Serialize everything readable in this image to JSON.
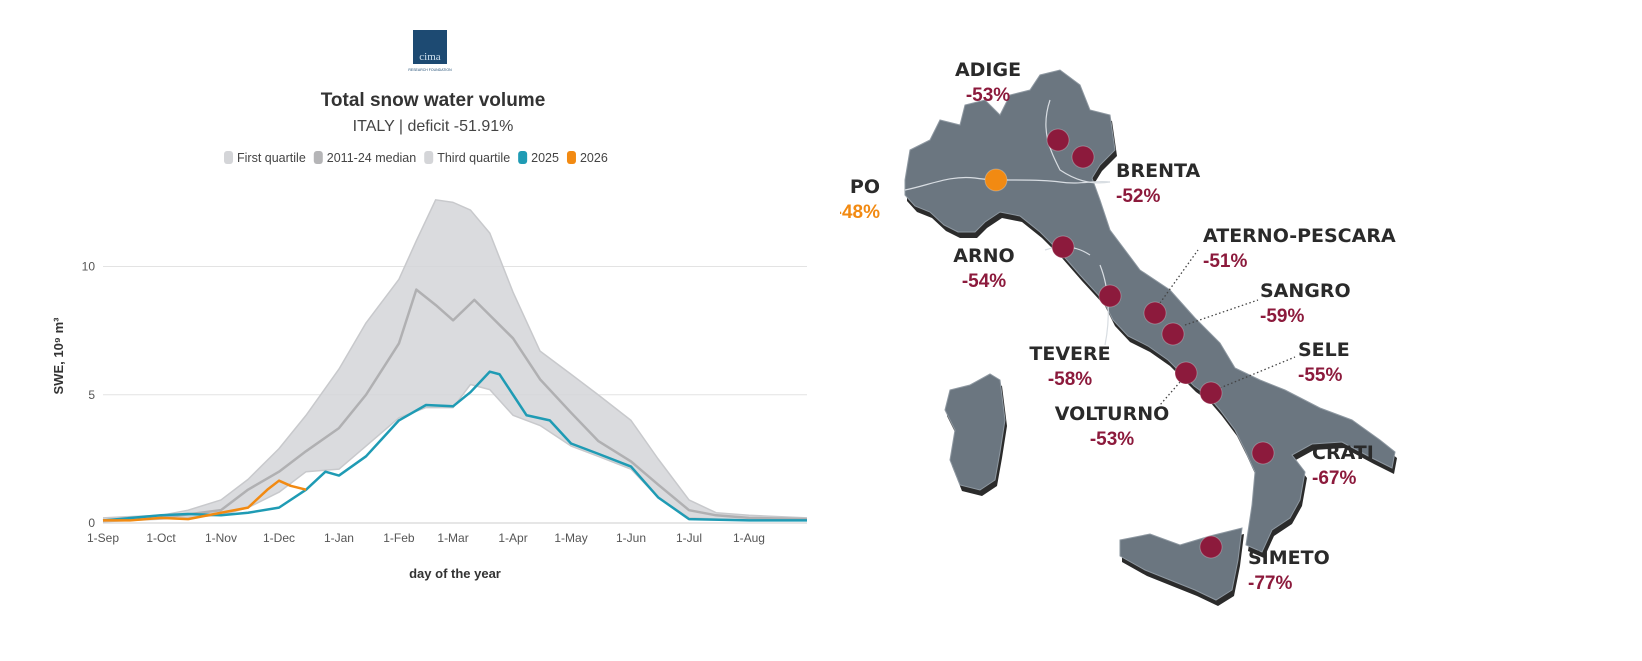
{
  "logo": {
    "text": "cima",
    "subtext": "RESEARCH FOUNDATION",
    "color": "#1d4a72"
  },
  "chart_data": {
    "type": "line",
    "title": "Total snow water volume",
    "subtitle": "ITALY | deficit -51.91%",
    "xlabel": "day of the year",
    "ylabel": "SWE, 10⁹ m³",
    "ylim": [
      0,
      13
    ],
    "yticks": [
      "0",
      "5",
      "10"
    ],
    "ytick_values": [
      0,
      5,
      10
    ],
    "xticks": [
      "1-Sep",
      "1-Oct",
      "1-Nov",
      "1-Dec",
      "1-Jan",
      "1-Feb",
      "1-Mar",
      "1-Apr",
      "1-May",
      "1-Jun",
      "1-Jul",
      "1-Aug"
    ],
    "xtick_dates": [
      "09-01",
      "10-01",
      "11-01",
      "12-01",
      "01-01",
      "02-01",
      "03-01",
      "04-01",
      "05-01",
      "06-01",
      "07-01",
      "08-01"
    ],
    "xlim": [
      "09-01",
      "08-31"
    ],
    "grid": "horizontal",
    "legend_position": "top-center",
    "legend": [
      {
        "label": "First quartile",
        "color": "#d4d5d8"
      },
      {
        "label": "2011-24 median",
        "color": "#b5b5b7"
      },
      {
        "label": "Third quartile",
        "color": "#d4d5d8"
      },
      {
        "label": "2025",
        "color": "#1f9bb4"
      },
      {
        "label": "2026",
        "color": "#f28a12"
      }
    ],
    "series": [
      {
        "name": "Third quartile",
        "color": "#d4d5d8",
        "x": [
          "09-01",
          "09-15",
          "10-01",
          "10-15",
          "11-01",
          "11-15",
          "12-01",
          "12-15",
          "01-01",
          "01-15",
          "02-01",
          "02-10",
          "02-20",
          "03-01",
          "03-10",
          "03-20",
          "04-01",
          "04-15",
          "05-01",
          "05-15",
          "06-01",
          "06-15",
          "07-01",
          "07-15",
          "08-01",
          "08-31"
        ],
        "y": [
          0.2,
          0.25,
          0.3,
          0.5,
          0.9,
          1.7,
          2.9,
          4.2,
          6.0,
          7.8,
          9.5,
          11.0,
          12.6,
          12.5,
          12.2,
          11.3,
          9.0,
          6.7,
          5.8,
          5.0,
          4.0,
          2.5,
          0.9,
          0.4,
          0.3,
          0.2
        ]
      },
      {
        "name": "2011-24 median",
        "color": "#b5b5b7",
        "x": [
          "09-01",
          "10-01",
          "11-01",
          "11-15",
          "12-01",
          "12-15",
          "01-01",
          "01-15",
          "02-01",
          "02-10",
          "02-20",
          "03-01",
          "03-12",
          "03-20",
          "04-01",
          "04-15",
          "05-01",
          "05-15",
          "06-01",
          "06-15",
          "07-01",
          "07-15",
          "08-01",
          "08-31"
        ],
        "y": [
          0.1,
          0.2,
          0.5,
          1.3,
          2.0,
          2.8,
          3.7,
          5.0,
          7.0,
          9.1,
          8.5,
          7.9,
          8.7,
          8.1,
          7.2,
          5.6,
          4.3,
          3.2,
          2.4,
          1.5,
          0.5,
          0.3,
          0.2,
          0.15
        ]
      },
      {
        "name": "First quartile",
        "color": "#d4d5d8",
        "x": [
          "09-01",
          "10-01",
          "11-01",
          "11-15",
          "12-01",
          "12-15",
          "01-01",
          "01-15",
          "02-01",
          "02-15",
          "03-01",
          "03-10",
          "03-20",
          "04-01",
          "04-15",
          "05-01",
          "05-15",
          "06-01",
          "06-15",
          "07-01",
          "08-01",
          "08-31"
        ],
        "y": [
          0.05,
          0.15,
          0.3,
          0.6,
          1.2,
          2.0,
          2.1,
          3.0,
          4.1,
          4.5,
          4.5,
          5.4,
          5.2,
          4.2,
          3.8,
          3.0,
          2.6,
          2.1,
          1.0,
          0.2,
          0.1,
          0.1
        ]
      },
      {
        "name": "2025",
        "color": "#1f9bb4",
        "x": [
          "09-01",
          "10-01",
          "10-15",
          "11-01",
          "11-15",
          "12-01",
          "12-15",
          "12-25",
          "01-01",
          "01-15",
          "02-01",
          "02-15",
          "03-01",
          "03-10",
          "03-20",
          "03-25",
          "04-01",
          "04-08",
          "04-20",
          "05-01",
          "05-15",
          "06-01",
          "06-15",
          "07-01",
          "08-01",
          "08-31"
        ],
        "y": [
          0.1,
          0.3,
          0.35,
          0.3,
          0.4,
          0.6,
          1.3,
          2.0,
          1.85,
          2.6,
          4.0,
          4.6,
          4.55,
          5.1,
          5.9,
          5.8,
          5.0,
          4.2,
          4.0,
          3.1,
          2.7,
          2.2,
          1.0,
          0.15,
          0.1,
          0.1
        ]
      },
      {
        "name": "2026",
        "color": "#f28a12",
        "x": [
          "09-01",
          "09-15",
          "10-01",
          "10-15",
          "11-01",
          "11-15",
          "11-25",
          "12-01",
          "12-07",
          "12-15"
        ],
        "y": [
          0.1,
          0.1,
          0.2,
          0.15,
          0.4,
          0.6,
          1.3,
          1.65,
          1.45,
          1.3
        ]
      }
    ]
  },
  "map": {
    "land_color": "#6b7680",
    "deficit_color": "#8c1a3c",
    "po_color": "#f28a12",
    "basins": [
      {
        "name": "ADIGE",
        "value": "-53%",
        "color": "#8c1a3c"
      },
      {
        "name": "BRENTA",
        "value": "-52%",
        "color": "#8c1a3c"
      },
      {
        "name": "PO",
        "value": "-48%",
        "color": "#f28a12"
      },
      {
        "name": "ARNO",
        "value": "-54%",
        "color": "#8c1a3c"
      },
      {
        "name": "ATERNO-PESCARA",
        "value": "-51%",
        "color": "#8c1a3c"
      },
      {
        "name": "SANGRO",
        "value": "-59%",
        "color": "#8c1a3c"
      },
      {
        "name": "TEVERE",
        "value": "-58%",
        "color": "#8c1a3c"
      },
      {
        "name": "SELE",
        "value": "-55%",
        "color": "#8c1a3c"
      },
      {
        "name": "VOLTURNO",
        "value": "-53%",
        "color": "#8c1a3c"
      },
      {
        "name": "CRATI",
        "value": "-67%",
        "color": "#8c1a3c"
      },
      {
        "name": "SIMETO",
        "value": "-77%",
        "color": "#8c1a3c"
      }
    ]
  }
}
